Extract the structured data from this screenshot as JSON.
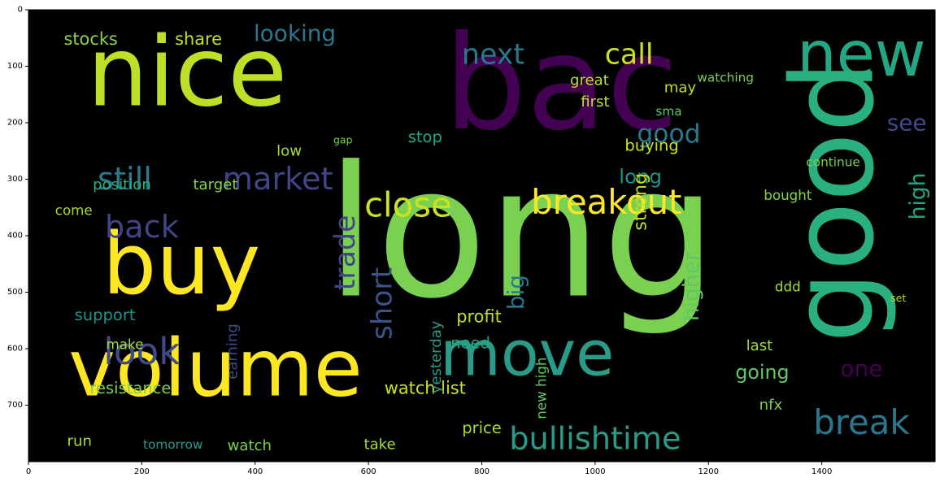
{
  "chart_data": {
    "type": "wordcloud",
    "x_ticks": [
      0,
      200,
      400,
      600,
      800,
      1000,
      1200,
      1400
    ],
    "y_ticks": [
      0,
      100,
      200,
      300,
      400,
      500,
      600,
      700
    ],
    "xlim": [
      0,
      1600
    ],
    "ylim": [
      0,
      800
    ],
    "background": "#000000",
    "palette": [
      "#440154",
      "#3b528b",
      "#21918c",
      "#5ec962",
      "#fde725"
    ],
    "words": [
      {
        "text": "long",
        "x": 870,
        "y": 395,
        "size": 320,
        "color": "#7ad151"
      },
      {
        "text": "bac",
        "x": 940,
        "y": 130,
        "size": 230,
        "color": "#440154"
      },
      {
        "text": "nice",
        "x": 280,
        "y": 110,
        "size": 170,
        "color": "#bddf26"
      },
      {
        "text": "volume",
        "x": 330,
        "y": 635,
        "size": 140,
        "color": "#fde725"
      },
      {
        "text": "buy",
        "x": 270,
        "y": 450,
        "size": 150,
        "color": "#fde725"
      },
      {
        "text": "new",
        "x": 1470,
        "y": 80,
        "size": 110,
        "color": "#22a884"
      },
      {
        "text": "move",
        "x": 880,
        "y": 610,
        "size": 110,
        "color": "#2a9a89"
      },
      {
        "text": "good",
        "x": 1420,
        "y": 340,
        "size": 200,
        "color": "#2ab07f",
        "rotate": -90
      },
      {
        "text": "breakout",
        "x": 1020,
        "y": 340,
        "size": 60,
        "color": "#fde725"
      },
      {
        "text": "close",
        "x": 670,
        "y": 345,
        "size": 60,
        "color": "#cde11d"
      },
      {
        "text": "bullishtime",
        "x": 1000,
        "y": 760,
        "size": 55,
        "color": "#2a9a89"
      },
      {
        "text": "look",
        "x": 200,
        "y": 605,
        "size": 65,
        "color": "#3e4a89"
      },
      {
        "text": "still",
        "x": 170,
        "y": 300,
        "size": 55,
        "color": "#2a788e"
      },
      {
        "text": "market",
        "x": 440,
        "y": 300,
        "size": 55,
        "color": "#414487"
      },
      {
        "text": "back",
        "x": 200,
        "y": 385,
        "size": 55,
        "color": "#414487"
      },
      {
        "text": "next",
        "x": 820,
        "y": 80,
        "size": 50,
        "color": "#2a788e"
      },
      {
        "text": "call",
        "x": 1060,
        "y": 80,
        "size": 50,
        "color": "#cde11d"
      },
      {
        "text": "break",
        "x": 1470,
        "y": 730,
        "size": 60,
        "color": "#2a788e"
      },
      {
        "text": "stocks",
        "x": 110,
        "y": 52,
        "size": 30,
        "color": "#86d549"
      },
      {
        "text": "share",
        "x": 300,
        "y": 52,
        "size": 30,
        "color": "#c2df23"
      },
      {
        "text": "looking",
        "x": 470,
        "y": 42,
        "size": 40,
        "color": "#2a788e"
      },
      {
        "text": "see",
        "x": 1550,
        "y": 200,
        "size": 40,
        "color": "#3e4a89"
      },
      {
        "text": "good",
        "x": 1130,
        "y": 220,
        "size": 45,
        "color": "#2a788e"
      },
      {
        "text": "long",
        "x": 1080,
        "y": 295,
        "size": 35,
        "color": "#21918c"
      },
      {
        "text": "watch list",
        "x": 700,
        "y": 670,
        "size": 30,
        "color": "#cde11d"
      },
      {
        "text": "resistance",
        "x": 180,
        "y": 670,
        "size": 28,
        "color": "#7ad151"
      },
      {
        "text": "support",
        "x": 135,
        "y": 540,
        "size": 28,
        "color": "#21918c"
      },
      {
        "text": "position",
        "x": 165,
        "y": 310,
        "size": 26,
        "color": "#2ab07f"
      },
      {
        "text": "target",
        "x": 330,
        "y": 310,
        "size": 26,
        "color": "#86d549"
      },
      {
        "text": "profit",
        "x": 795,
        "y": 543,
        "size": 30,
        "color": "#bddf26"
      },
      {
        "text": "need",
        "x": 780,
        "y": 590,
        "size": 28,
        "color": "#22a884"
      },
      {
        "text": "price",
        "x": 800,
        "y": 740,
        "size": 28,
        "color": "#a5db36"
      },
      {
        "text": "watch",
        "x": 390,
        "y": 772,
        "size": 26,
        "color": "#7ad151"
      },
      {
        "text": "take",
        "x": 620,
        "y": 770,
        "size": 26,
        "color": "#a5db36"
      },
      {
        "text": "run",
        "x": 90,
        "y": 764,
        "size": 26,
        "color": "#a5db36"
      },
      {
        "text": "tomorrow",
        "x": 255,
        "y": 770,
        "size": 22,
        "color": "#2a9a89"
      },
      {
        "text": "going",
        "x": 1295,
        "y": 642,
        "size": 34,
        "color": "#5ec962"
      },
      {
        "text": "one",
        "x": 1470,
        "y": 635,
        "size": 40,
        "color": "#440154"
      },
      {
        "text": "great",
        "x": 990,
        "y": 125,
        "size": 26,
        "color": "#bddf26"
      },
      {
        "text": "first",
        "x": 1000,
        "y": 163,
        "size": 26,
        "color": "#bddf26"
      },
      {
        "text": "buying",
        "x": 1100,
        "y": 240,
        "size": 28,
        "color": "#cde11d"
      },
      {
        "text": "bought",
        "x": 1340,
        "y": 328,
        "size": 24,
        "color": "#86d549"
      },
      {
        "text": "last",
        "x": 1290,
        "y": 595,
        "size": 26,
        "color": "#a5db36"
      },
      {
        "text": "low",
        "x": 460,
        "y": 250,
        "size": 26,
        "color": "#a5db36"
      },
      {
        "text": "make",
        "x": 170,
        "y": 592,
        "size": 24,
        "color": "#a5db36"
      },
      {
        "text": "come",
        "x": 80,
        "y": 355,
        "size": 24,
        "color": "#a5db36"
      },
      {
        "text": "trade",
        "x": 560,
        "y": 430,
        "size": 50,
        "color": "#414487",
        "rotate": -90
      },
      {
        "text": "short",
        "x": 625,
        "y": 520,
        "size": 50,
        "color": "#3b528b",
        "rotate": -90
      },
      {
        "text": "big",
        "x": 860,
        "y": 500,
        "size": 40,
        "color": "#2a788e",
        "rotate": -90
      },
      {
        "text": "higher",
        "x": 1170,
        "y": 490,
        "size": 38,
        "color": "#5ec962",
        "rotate": -90
      },
      {
        "text": "strong",
        "x": 1080,
        "y": 340,
        "size": 32,
        "color": "#bddf26",
        "rotate": -90
      },
      {
        "text": "high",
        "x": 1570,
        "y": 330,
        "size": 38,
        "color": "#22a884",
        "rotate": -90
      },
      {
        "text": "earning",
        "x": 360,
        "y": 605,
        "size": 26,
        "color": "#3e4a89",
        "rotate": -90
      },
      {
        "text": "nfx",
        "x": 1310,
        "y": 700,
        "size": 26,
        "color": "#7ad151"
      },
      {
        "text": "ddd",
        "x": 1340,
        "y": 490,
        "size": 24,
        "color": "#a5db36"
      },
      {
        "text": "continue",
        "x": 1420,
        "y": 270,
        "size": 22,
        "color": "#7ad151"
      },
      {
        "text": "set",
        "x": 1535,
        "y": 510,
        "size": 18,
        "color": "#bddf26"
      },
      {
        "text": "gap",
        "x": 555,
        "y": 230,
        "size": 18,
        "color": "#7ad151"
      },
      {
        "text": "stop",
        "x": 700,
        "y": 225,
        "size": 28,
        "color": "#22a884"
      },
      {
        "text": "sma",
        "x": 1130,
        "y": 180,
        "size": 22,
        "color": "#5ec962"
      },
      {
        "text": "may",
        "x": 1150,
        "y": 138,
        "size": 26,
        "color": "#bddf26"
      },
      {
        "text": "watching",
        "x": 1230,
        "y": 120,
        "size": 22,
        "color": "#7ad151"
      },
      {
        "text": "yesterday",
        "x": 720,
        "y": 615,
        "size": 26,
        "color": "#2a9a89",
        "rotate": -90
      },
      {
        "text": "new high",
        "x": 905,
        "y": 670,
        "size": 24,
        "color": "#5ec962",
        "rotate": -90
      }
    ]
  }
}
